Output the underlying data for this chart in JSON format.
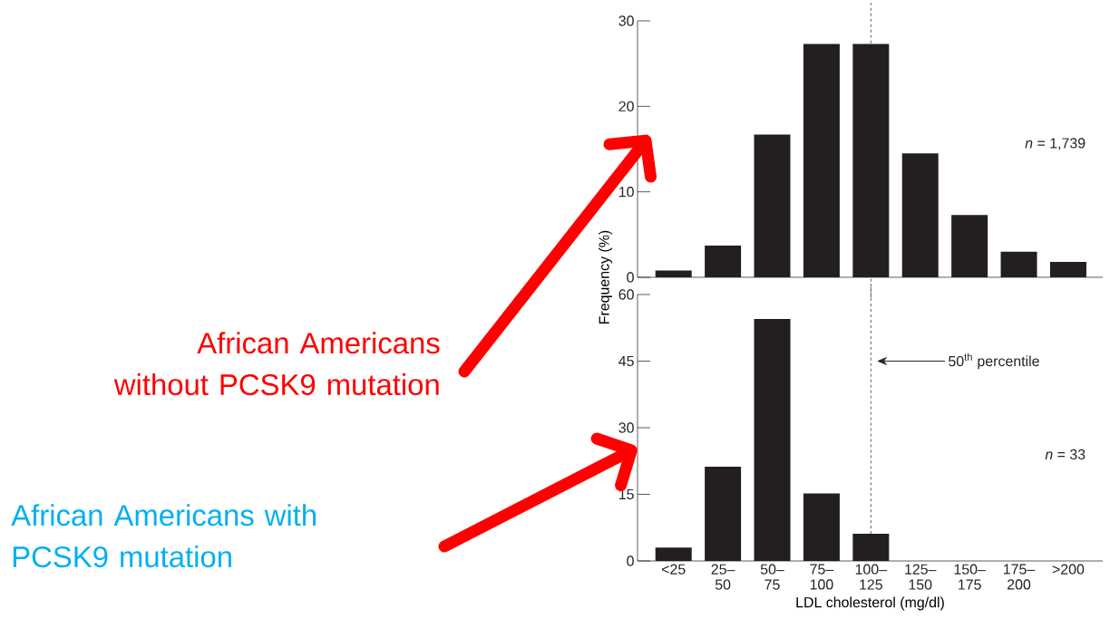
{
  "chart_data": [
    {
      "type": "bar",
      "categories": [
        "<25",
        "25–50",
        "50–75",
        "75–100",
        "100–125",
        "125–150",
        "150–175",
        "175–200",
        ">200"
      ],
      "values": [
        0.8,
        3.7,
        16.7,
        27.3,
        27.3,
        14.5,
        7.3,
        3.0,
        1.8
      ],
      "color": "#231f20",
      "ylim": [
        0,
        30
      ],
      "yticks": [
        0,
        10,
        20,
        30
      ],
      "ylabel": "Frequency (%)",
      "tick_labels": "y",
      "ref_lines": [
        {
          "axis": "x",
          "value": "100–125",
          "line_style": "dashed"
        }
      ],
      "annotations": [
        "*n* = 1,739",
        "African Americans without PCSK9 mutation"
      ]
    },
    {
      "type": "bar",
      "categories": [
        "<25",
        "25–50",
        "50–75",
        "75–100",
        "100–125",
        "125–150",
        "150–175",
        "175–200",
        ">200"
      ],
      "values": [
        3.0,
        21.2,
        54.5,
        15.2,
        6.1,
        0,
        0,
        0,
        0
      ],
      "color": "#231f20",
      "ylim": [
        0,
        60
      ],
      "yticks": [
        0,
        15,
        30,
        45,
        60
      ],
      "xlabel": "LDL cholesterol (mg/dl)",
      "ref_lines": [
        {
          "axis": "x",
          "value": "100–125",
          "line_style": "dashed"
        }
      ],
      "annotations": [
        "*n* = 33",
        "African Americans with PCSK9 mutation",
        "50$^{th}$ percentile"
      ]
    }
  ]
}
